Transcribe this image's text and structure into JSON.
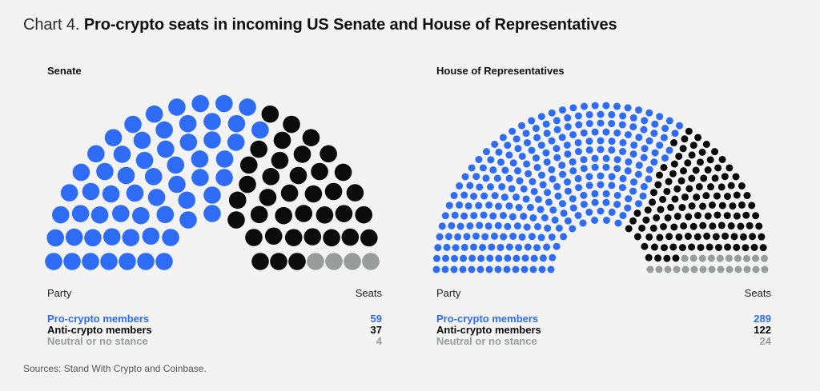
{
  "title": {
    "prefix": "Chart 4.",
    "main": "Pro-crypto seats in incoming US Senate and House of Representatives"
  },
  "colors": {
    "pro": "#2f6cf6",
    "anti": "#0b0b0b",
    "neutral": "#9a9b9b"
  },
  "chart_data": [
    {
      "type": "parliament",
      "title": "Senate",
      "column_headers": [
        "Party",
        "Seats"
      ],
      "series": [
        {
          "name": "Pro-crypto members",
          "value": 59
        },
        {
          "name": "Anti-crypto members",
          "value": 37
        },
        {
          "name": "Neutral or no stance",
          "value": 4
        }
      ],
      "total": 100
    },
    {
      "type": "parliament",
      "title": "House of Representatives",
      "column_headers": [
        "Party",
        "Seats"
      ],
      "series": [
        {
          "name": "Pro-crypto members",
          "value": 289
        },
        {
          "name": "Anti-crypto members",
          "value": 122
        },
        {
          "name": "Neutral or no stance",
          "value": 24
        }
      ],
      "total": 435
    }
  ],
  "source": "Sources: Stand With Crypto and Coinbase."
}
